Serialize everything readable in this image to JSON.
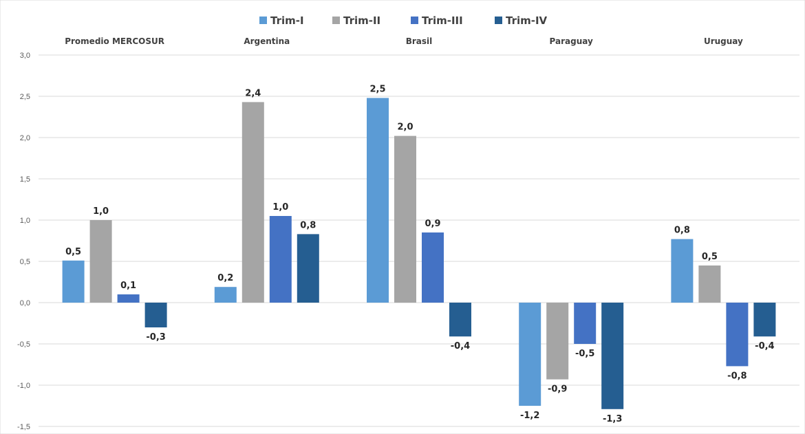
{
  "chart_data": {
    "type": "bar",
    "title": "",
    "xlabel": "",
    "ylabel": "",
    "categories": [
      "Promedio MERCOSUR",
      "Argentina",
      "Brasil",
      "Paraguay",
      "Uruguay"
    ],
    "series": [
      {
        "name": "Trim-I",
        "color": "#5b9bd5",
        "values": [
          0.51,
          0.19,
          2.48,
          -1.25,
          0.77
        ],
        "labels": [
          "0,5",
          "0,2",
          "2,5",
          "-1,2",
          "0,8"
        ]
      },
      {
        "name": "Trim-II",
        "color": "#a5a5a5",
        "values": [
          1.0,
          2.43,
          2.02,
          -0.93,
          0.45
        ],
        "labels": [
          "1,0",
          "2,4",
          "2,0",
          "-0,9",
          "0,5"
        ]
      },
      {
        "name": "Trim-III",
        "color": "#4472c4",
        "values": [
          0.1,
          1.05,
          0.85,
          -0.5,
          -0.77
        ],
        "labels": [
          "0,1",
          "1,0",
          "0,9",
          "-0,5",
          "-0,8"
        ]
      },
      {
        "name": "Trim-IV",
        "color": "#255e91",
        "values": [
          -0.3,
          0.83,
          -0.41,
          -1.29,
          -0.41
        ],
        "labels": [
          "-0,3",
          "0,8",
          "-0,4",
          "-1,3",
          "-0,4"
        ]
      }
    ],
    "ylim": [
      -1.5,
      3.0
    ],
    "yticks": [
      "3,0",
      "2,5",
      "2,0",
      "1,5",
      "1,0",
      "0,5",
      "0,0",
      "-0,5",
      "-1,0",
      "-1,5"
    ],
    "grid": true,
    "legend_position": "top-center"
  }
}
